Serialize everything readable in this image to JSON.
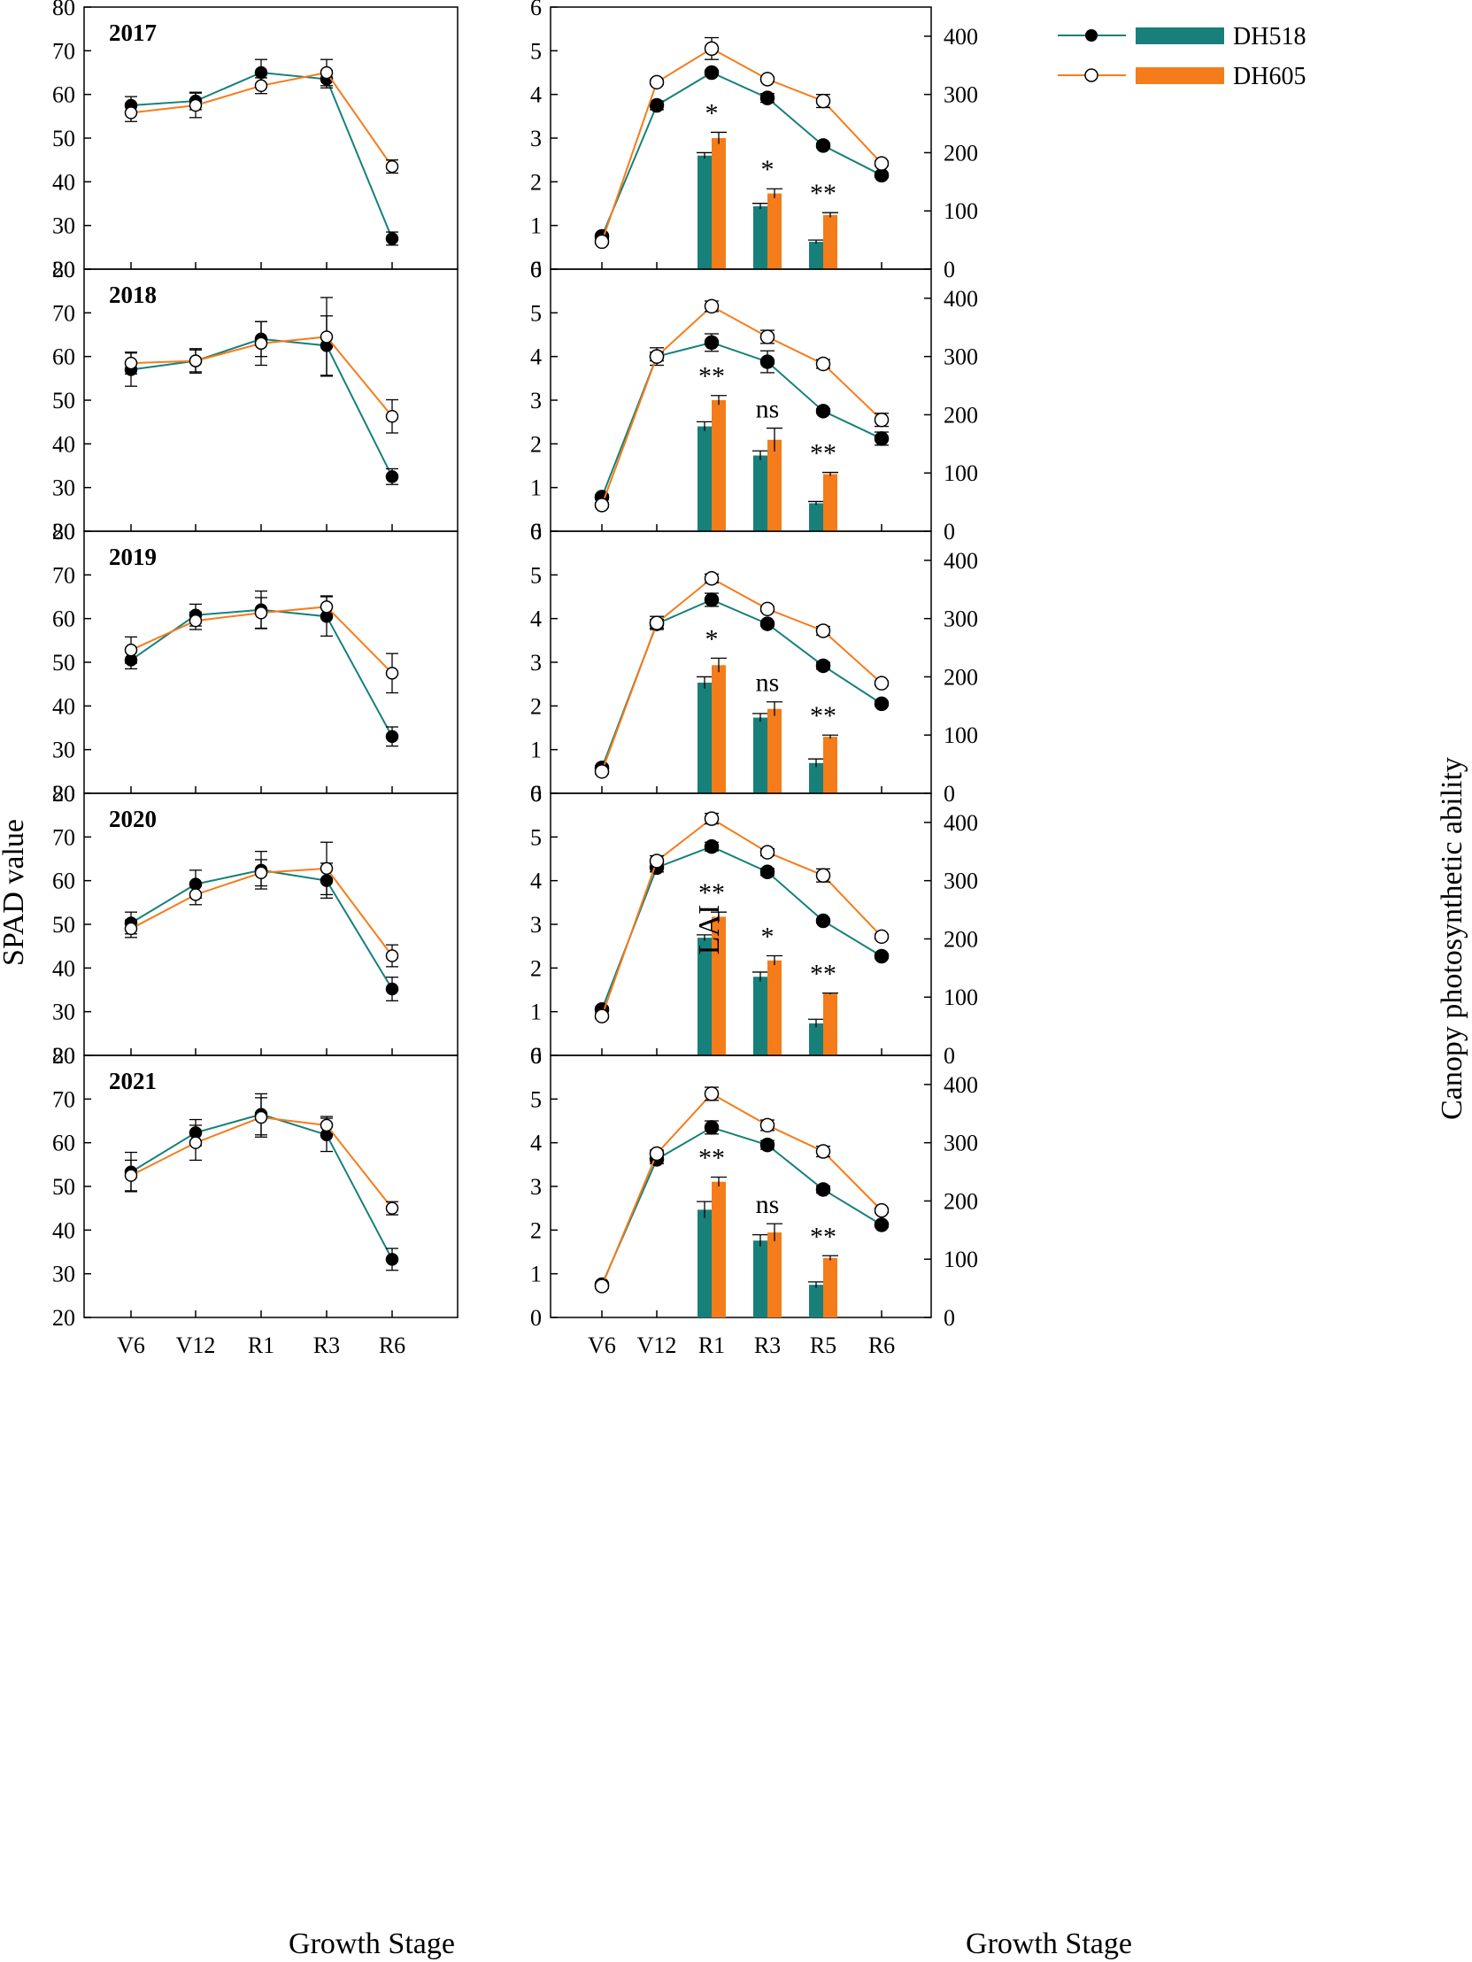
{
  "figure": {
    "left_xlabel": "Growth Stage",
    "right_xlabel": "Growth Stage",
    "left_ylabel": "SPAD value",
    "middle_ylabel": "LAI",
    "right_ylabel": "Canopy photosynthetic ability"
  },
  "colors": {
    "DH518": "#17807A",
    "DH605": "#F47C1B"
  },
  "legend": {
    "entries": [
      "DH518",
      "DH605"
    ]
  },
  "chart_data": [
    {
      "id": "spad",
      "type": "line",
      "ylabel": "SPAD value",
      "xlabel": "Growth Stage",
      "categories": [
        "V6",
        "V12",
        "R1",
        "R3",
        "R6"
      ],
      "ylim": [
        20,
        80
      ],
      "yticks": [
        20,
        30,
        40,
        50,
        60,
        70,
        80
      ],
      "panels": [
        {
          "year": "2017",
          "series": [
            {
              "name": "DH518",
              "values": [
                57.5,
                58.5,
                65.0,
                63.5,
                27.0
              ],
              "errors": [
                2.0,
                2.0,
                3.0,
                2.0,
                1.5
              ]
            },
            {
              "name": "DH605",
              "values": [
                55.8,
                57.5,
                62.0,
                65.0,
                43.5
              ],
              "errors": [
                2.0,
                2.8,
                1.8,
                3.0,
                1.5
              ]
            }
          ]
        },
        {
          "year": "2018",
          "series": [
            {
              "name": "DH518",
              "values": [
                57.0,
                59.0,
                64.0,
                62.5,
                32.5
              ],
              "errors": [
                3.8,
                2.5,
                4.0,
                6.8,
                1.8
              ]
            },
            {
              "name": "DH605",
              "values": [
                58.5,
                59.0,
                63.0,
                64.5,
                46.3
              ],
              "errors": [
                2.5,
                2.8,
                5.0,
                9.0,
                3.8
              ]
            }
          ]
        },
        {
          "year": "2019",
          "series": [
            {
              "name": "DH518",
              "values": [
                50.5,
                60.8,
                62.0,
                60.5,
                33.0
              ],
              "errors": [
                2.0,
                2.5,
                4.3,
                4.5,
                2.2
              ]
            },
            {
              "name": "DH605",
              "values": [
                52.8,
                59.5,
                61.3,
                62.7,
                47.5
              ],
              "errors": [
                3.0,
                2.0,
                3.5,
                2.5,
                4.5
              ]
            }
          ]
        },
        {
          "year": "2020",
          "series": [
            {
              "name": "DH518",
              "values": [
                50.3,
                59.2,
                62.4,
                60.0,
                35.2
              ],
              "errors": [
                2.5,
                3.2,
                4.3,
                4.0,
                2.7
              ]
            },
            {
              "name": "DH605",
              "values": [
                49.0,
                56.8,
                61.8,
                62.8,
                42.8
              ],
              "errors": [
                2.0,
                2.3,
                3.0,
                6.0,
                2.5
              ]
            }
          ]
        },
        {
          "year": "2021",
          "series": [
            {
              "name": "DH518",
              "values": [
                53.3,
                62.3,
                66.5,
                61.8,
                33.3
              ],
              "errors": [
                4.5,
                3.0,
                4.7,
                3.8,
                2.5
              ]
            },
            {
              "name": "DH605",
              "values": [
                52.5,
                60.0,
                65.8,
                64.0,
                45.0
              ],
              "errors": [
                3.5,
                4.0,
                4.5,
                2.0,
                1.5
              ]
            }
          ]
        }
      ]
    },
    {
      "id": "lai_canopy",
      "type": "line+bar",
      "xlabel": "Growth Stage",
      "ylabel": "LAI",
      "y2label": "Canopy photosynthetic ability",
      "categories": [
        "V6",
        "V12",
        "R1",
        "R3",
        "R5",
        "R6"
      ],
      "ylim": [
        0,
        6
      ],
      "yticks": [
        0,
        1,
        2,
        3,
        4,
        5,
        6
      ],
      "y2lim": [
        0,
        450
      ],
      "y2ticks": [
        0,
        100,
        200,
        300,
        400
      ],
      "bar_categories": [
        "R1",
        "R3",
        "R5"
      ],
      "panels": [
        {
          "year": "2017",
          "lai": [
            {
              "name": "DH518",
              "values": [
                0.75,
                3.75,
                4.5,
                3.92,
                2.83,
                2.15
              ],
              "errors": [
                0.05,
                0.1,
                0.05,
                0.1,
                0.05,
                0.05
              ]
            },
            {
              "name": "DH605",
              "values": [
                0.63,
                4.28,
                5.05,
                4.35,
                3.85,
                2.42
              ],
              "errors": [
                0.05,
                0.05,
                0.25,
                0.05,
                0.15,
                0.05
              ]
            }
          ],
          "canopy": [
            {
              "name": "DH518",
              "values": [
                195,
                108,
                47
              ],
              "errors": [
                5,
                5,
                3
              ]
            },
            {
              "name": "DH605",
              "values": [
                225,
                130,
                93
              ],
              "errors": [
                10,
                8,
                4
              ]
            }
          ],
          "significance": [
            "*",
            "*",
            "**"
          ]
        },
        {
          "year": "2018",
          "lai": [
            {
              "name": "DH518",
              "values": [
                0.78,
                4.0,
                4.32,
                3.88,
                2.75,
                2.12
              ],
              "errors": [
                0.05,
                0.2,
                0.2,
                0.25,
                0.05,
                0.15
              ]
            },
            {
              "name": "DH605",
              "values": [
                0.6,
                4.0,
                5.15,
                4.45,
                3.83,
                2.55
              ],
              "errors": [
                0.05,
                0.1,
                0.12,
                0.15,
                0.1,
                0.15
              ]
            }
          ],
          "canopy": [
            {
              "name": "DH518",
              "values": [
                180,
                130,
                48
              ],
              "errors": [
                8,
                8,
                3
              ]
            },
            {
              "name": "DH605",
              "values": [
                225,
                157,
                98
              ],
              "errors": [
                8,
                20,
                3
              ]
            }
          ],
          "significance": [
            "**",
            "ns",
            "**"
          ]
        },
        {
          "year": "2019",
          "lai": [
            {
              "name": "DH518",
              "values": [
                0.58,
                3.88,
                4.43,
                3.88,
                2.92,
                2.05
              ],
              "errors": [
                0.05,
                0.1,
                0.15,
                0.05,
                0.08,
                0.05
              ]
            },
            {
              "name": "DH605",
              "values": [
                0.5,
                3.9,
                4.92,
                4.22,
                3.72,
                2.52
              ],
              "errors": [
                0.05,
                0.15,
                0.1,
                0.05,
                0.1,
                0.05
              ]
            }
          ],
          "canopy": [
            {
              "name": "DH518",
              "values": [
                190,
                130,
                52
              ],
              "errors": [
                10,
                7,
                7
              ]
            },
            {
              "name": "DH605",
              "values": [
                220,
                145,
                97
              ],
              "errors": [
                12,
                12,
                3
              ]
            }
          ],
          "significance": [
            "*",
            "ns",
            "**"
          ]
        },
        {
          "year": "2020",
          "lai": [
            {
              "name": "DH518",
              "values": [
                1.05,
                4.3,
                4.78,
                4.2,
                3.08,
                2.27
              ],
              "errors": [
                0.05,
                0.1,
                0.1,
                0.08,
                0.05,
                0.05
              ]
            },
            {
              "name": "DH605",
              "values": [
                0.9,
                4.45,
                5.42,
                4.65,
                4.12,
                2.72
              ],
              "errors": [
                0.05,
                0.12,
                0.12,
                0.08,
                0.15,
                0.05
              ]
            }
          ],
          "canopy": [
            {
              "name": "DH518",
              "values": [
                202,
                135,
                55
              ],
              "errors": [
                5,
                8,
                7
              ]
            },
            {
              "name": "DH605",
              "values": [
                238,
                163,
                106
              ],
              "errors": [
                8,
                8,
                1
              ]
            }
          ],
          "significance": [
            "**",
            "*",
            "**"
          ]
        },
        {
          "year": "2021",
          "lai": [
            {
              "name": "DH518",
              "values": [
                0.75,
                3.62,
                4.35,
                3.95,
                2.93,
                2.12
              ],
              "errors": [
                0.05,
                0.1,
                0.15,
                0.1,
                0.08,
                0.05
              ]
            },
            {
              "name": "DH605",
              "values": [
                0.72,
                3.75,
                5.12,
                4.4,
                3.8,
                2.45
              ],
              "errors": [
                0.05,
                0.08,
                0.15,
                0.12,
                0.12,
                0.05
              ]
            }
          ],
          "canopy": [
            {
              "name": "DH518",
              "values": [
                185,
                132,
                56
              ],
              "errors": [
                14,
                10,
                5
              ]
            },
            {
              "name": "DH605",
              "values": [
                233,
                146,
                102
              ],
              "errors": [
                8,
                15,
                4
              ]
            }
          ],
          "significance": [
            "**",
            "ns",
            "**"
          ]
        }
      ]
    }
  ]
}
